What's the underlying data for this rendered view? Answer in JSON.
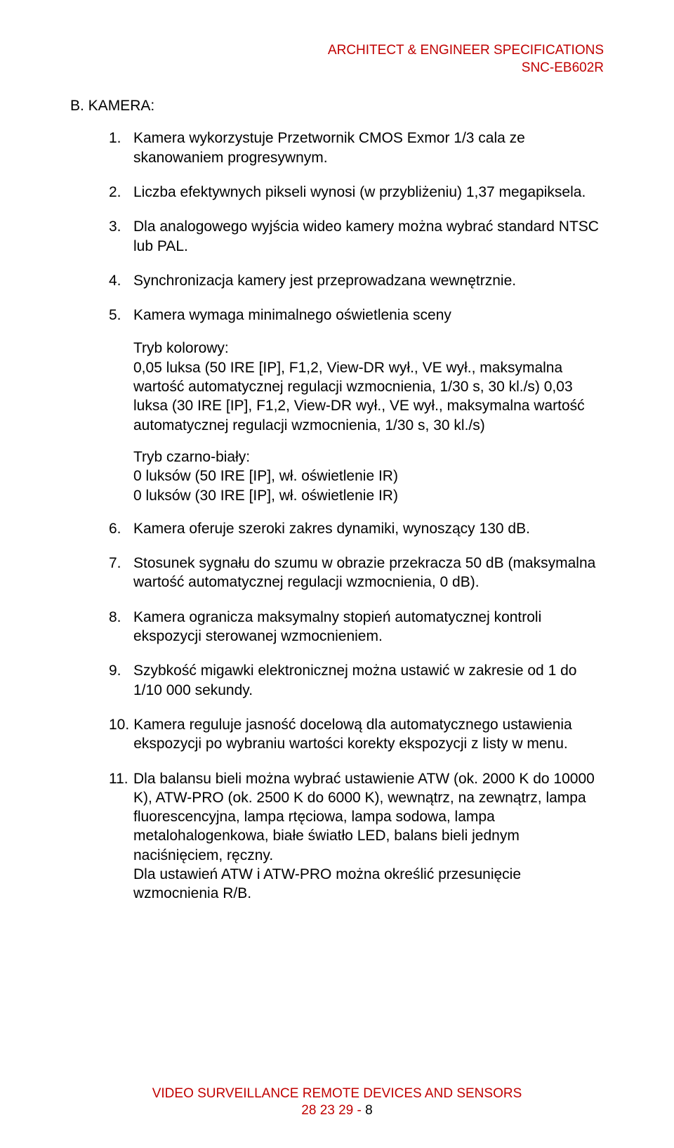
{
  "header": {
    "line1": "ARCHITECT & ENGINEER SPECIFICATIONS",
    "line2": "SNC-EB602R"
  },
  "section": {
    "title": "B. KAMERA:"
  },
  "items": [
    {
      "num": "1.",
      "text": "Kamera wykorzystuje Przetwornik CMOS Exmor 1/3 cala ze skanowaniem progresywnym."
    },
    {
      "num": "2.",
      "text": "Liczba efektywnych pikseli wynosi (w przybliżeniu) 1,37 megapiksela."
    },
    {
      "num": "3.",
      "text": "Dla analogowego wyjścia wideo kamery można wybrać standard NTSC lub PAL."
    },
    {
      "num": "4.",
      "text": "Synchronizacja kamery jest przeprowadzana wewnętrznie."
    },
    {
      "num": "5.",
      "text": "Kamera wymaga minimalnego oświetlenia sceny"
    },
    {
      "num": "6.",
      "text": "Kamera oferuje szeroki zakres dynamiki, wynoszący 130 dB."
    },
    {
      "num": "7.",
      "text": "Stosunek sygnału do szumu w obrazie przekracza 50 dB (maksymalna wartość automatycznej regulacji wzmocnienia, 0 dB)."
    },
    {
      "num": "8.",
      "text": "Kamera ogranicza maksymalny stopień automatycznej kontroli ekspozycji sterowanej wzmocnieniem."
    },
    {
      "num": "9.",
      "text": "Szybkość migawki elektronicznej można ustawić w zakresie od 1 do 1/10 000 sekundy."
    },
    {
      "num": "10.",
      "text": "Kamera reguluje jasność docelową dla automatycznego ustawienia ekspozycji po wybraniu wartości korekty ekspozycji z listy w menu."
    },
    {
      "num": "11.",
      "text": "Dla balansu bieli można wybrać ustawienie ATW (ok. 2000 K do 10000 K), ATW-PRO (ok. 2500 K do 6000 K), wewnątrz, na zewnątrz, lampa fluorescencyjna, lampa rtęciowa, lampa sodowa, lampa metalohalogenkowa, białe światło LED, balans bieli jednym naciśnięciem, ręczny.\nDla ustawień ATW i ATW-PRO można określić przesunięcie wzmocnienia R/B."
    }
  ],
  "sub5": {
    "color_label": "Tryb kolorowy:",
    "color_text": "0,05 luksa (50 IRE [IP], F1,2, View-DR wył., VE wył., maksymalna wartość automatycznej regulacji wzmocnienia, 1/30 s, 30 kl./s) 0,03 luksa (30 IRE [IP], F1,2, View-DR wył., VE wył., maksymalna wartość automatycznej regulacji wzmocnienia, 1/30 s, 30 kl./s)",
    "bw_label": "Tryb czarno-biały:",
    "bw_line1": "0 luksów (50 IRE [IP], wł. oświetlenie IR)",
    "bw_line2": "0 luksów (30 IRE [IP], wł. oświetlenie IR)"
  },
  "footer": {
    "line1": "VIDEO SURVEILLANCE REMOTE DEVICES AND SENSORS",
    "line2_prefix": "28 23 29 - ",
    "page": "8"
  },
  "colors": {
    "accent": "#c00000",
    "text": "#000000",
    "background": "#ffffff"
  }
}
